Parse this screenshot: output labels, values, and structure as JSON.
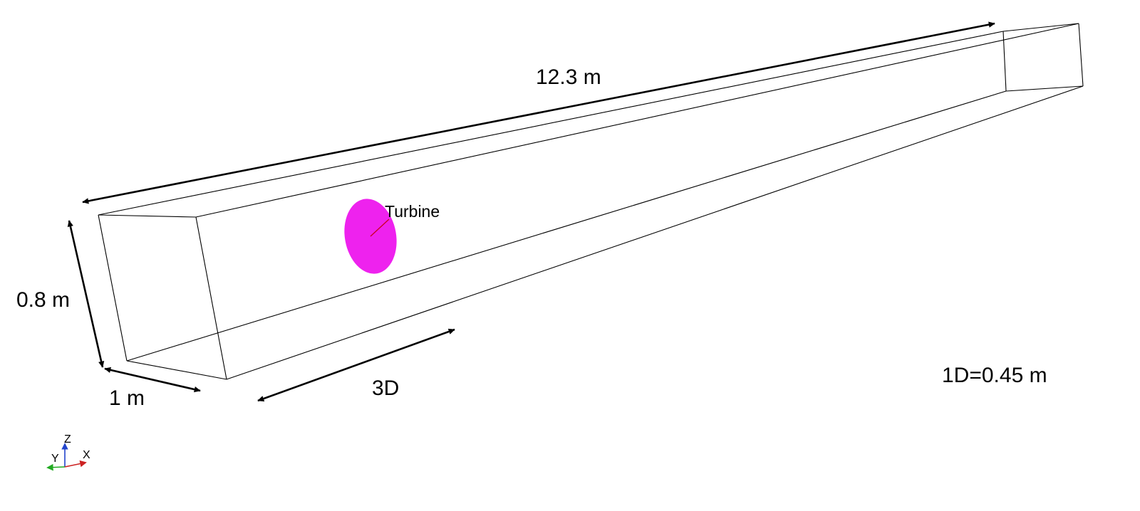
{
  "labels": {
    "length": "12.3 m",
    "height": "0.8 m",
    "width": "1 m",
    "spacing": "3D",
    "turbine": "Turbine",
    "diameter_note": "1D=0.45 m"
  },
  "axes": {
    "z": "Z",
    "y": "Y",
    "x": "X"
  },
  "colors": {
    "turbine": "#ee22ee",
    "turbine_leader": "#cc0022",
    "axis_z": "#2244cc",
    "axis_y": "#22aa22",
    "axis_x": "#cc2222"
  }
}
